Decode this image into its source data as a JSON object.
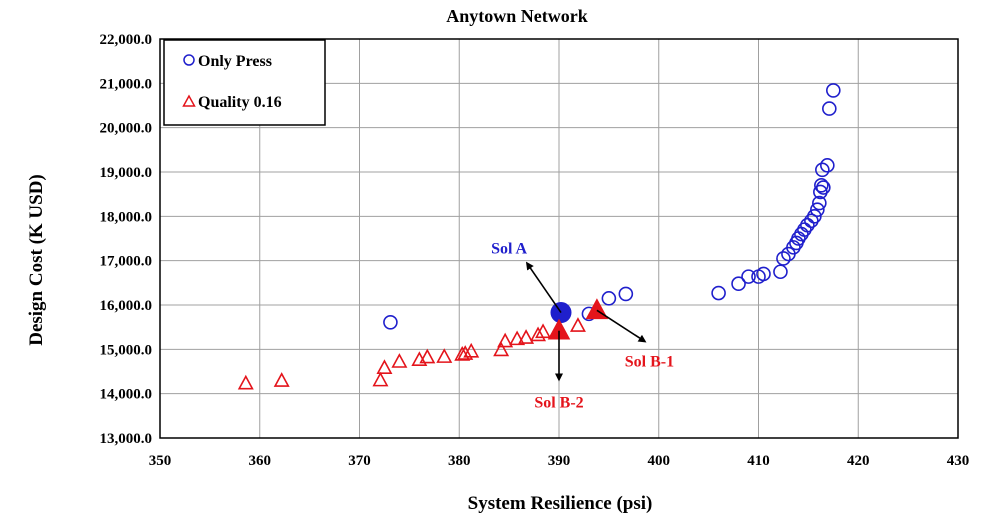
{
  "chart_data": {
    "type": "scatter",
    "title": "Anytown Network",
    "xlabel": "System Resilience (psi)",
    "ylabel": "Design Cost (K USD)",
    "xlim": [
      350,
      430
    ],
    "ylim": [
      13000,
      22000
    ],
    "x_ticks": [
      "350",
      "360",
      "370",
      "380",
      "390",
      "400",
      "410",
      "420",
      "430"
    ],
    "y_ticks": [
      "13,000.0",
      "14,000.0",
      "15,000.0",
      "16,000.0",
      "17,000.0",
      "18,000.0",
      "19,000.0",
      "20,000.0",
      "21,000.0",
      "22,000.0"
    ],
    "grid": true,
    "legend_position": "top-left",
    "series": [
      {
        "name": "Only Press",
        "color": "#1f1fcc",
        "marker": "circle",
        "points": [
          [
            373.1,
            15610
          ],
          [
            393.0,
            15800
          ],
          [
            395.0,
            16150
          ],
          [
            396.7,
            16250
          ],
          [
            406.0,
            16270
          ],
          [
            408.0,
            16480
          ],
          [
            409.0,
            16640
          ],
          [
            410.0,
            16640
          ],
          [
            410.5,
            16700
          ],
          [
            412.2,
            16750
          ],
          [
            412.5,
            17050
          ],
          [
            413.0,
            17150
          ],
          [
            413.5,
            17300
          ],
          [
            413.8,
            17400
          ],
          [
            414.0,
            17500
          ],
          [
            414.3,
            17600
          ],
          [
            414.6,
            17700
          ],
          [
            414.9,
            17800
          ],
          [
            415.3,
            17900
          ],
          [
            415.6,
            18000
          ],
          [
            415.9,
            18150
          ],
          [
            416.1,
            18300
          ],
          [
            416.2,
            18550
          ],
          [
            416.3,
            18700
          ],
          [
            416.5,
            18650
          ],
          [
            416.4,
            19050
          ],
          [
            416.9,
            19150
          ],
          [
            417.1,
            20430
          ],
          [
            417.5,
            20840
          ]
        ]
      },
      {
        "name": "Quality 0.16",
        "color": "#e4141b",
        "marker": "triangle",
        "points": [
          [
            358.6,
            14230
          ],
          [
            362.2,
            14290
          ],
          [
            372.1,
            14300
          ],
          [
            372.5,
            14580
          ],
          [
            374.0,
            14720
          ],
          [
            376.0,
            14760
          ],
          [
            376.8,
            14820
          ],
          [
            378.5,
            14830
          ],
          [
            380.3,
            14880
          ],
          [
            380.6,
            14900
          ],
          [
            381.2,
            14950
          ],
          [
            384.2,
            14980
          ],
          [
            384.6,
            15180
          ],
          [
            385.8,
            15230
          ],
          [
            386.7,
            15260
          ],
          [
            387.9,
            15320
          ],
          [
            388.4,
            15390
          ],
          [
            391.9,
            15530
          ]
        ]
      }
    ],
    "highlights": [
      {
        "label": "Sol A",
        "x": 390.2,
        "y": 15830,
        "marker": "circle",
        "color": "#1f1fcc",
        "arrow_to": [
          386.8,
          16940
        ]
      },
      {
        "label": "Sol B-1",
        "x": 393.8,
        "y": 15880,
        "marker": "triangle",
        "color": "#e4141b",
        "arrow_to": [
          398.6,
          15180
        ]
      },
      {
        "label": "Sol B-2",
        "x": 390.0,
        "y": 15420,
        "marker": "triangle",
        "color": "#e4141b",
        "arrow_to": [
          390.0,
          14320
        ]
      }
    ]
  }
}
